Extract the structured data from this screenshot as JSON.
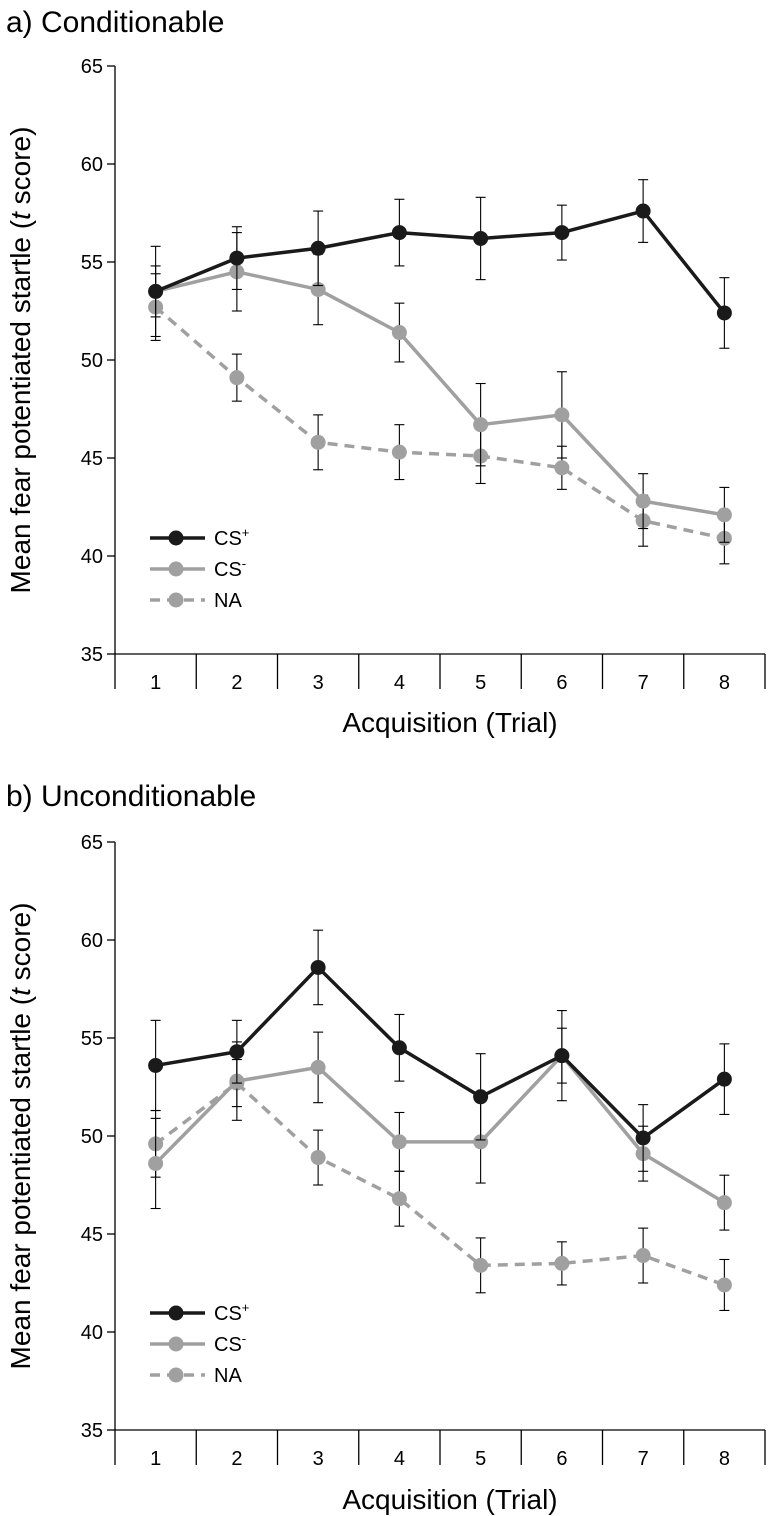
{
  "chart_data": [
    {
      "type": "line",
      "title": "a) Conditionable",
      "xlabel": "Acquisition (Trial)",
      "ylabel": "Mean fear potentiated startle (",
      "ylabel_italic": "t",
      "ylabel_end": " score)",
      "x": [
        1,
        2,
        3,
        4,
        5,
        6,
        7,
        8
      ],
      "ylim": [
        35,
        65
      ],
      "yticks": [
        35,
        40,
        45,
        50,
        55,
        60,
        65
      ],
      "grid": false,
      "legend_position": "bottom-left",
      "series": [
        {
          "name": "CS",
          "name_sup": "+",
          "color": "#1a1a1a",
          "dash": false,
          "values": [
            53.5,
            55.2,
            55.7,
            56.5,
            56.2,
            56.5,
            57.6,
            52.4
          ],
          "errors": [
            1.3,
            1.6,
            1.9,
            1.7,
            2.1,
            1.4,
            1.6,
            1.8
          ]
        },
        {
          "name": "CS",
          "name_sup": "-",
          "color": "#a0a0a0",
          "dash": false,
          "values": [
            53.5,
            54.5,
            53.6,
            51.4,
            46.7,
            47.2,
            42.8,
            42.1
          ],
          "errors": [
            2.3,
            2.0,
            1.8,
            1.5,
            2.1,
            2.2,
            1.4,
            1.4
          ]
        },
        {
          "name": "NA",
          "name_sup": "",
          "color": "#a0a0a0",
          "dash": true,
          "values": [
            52.7,
            49.1,
            45.8,
            45.3,
            45.1,
            44.5,
            41.8,
            40.9
          ],
          "errors": [
            1.7,
            1.2,
            1.4,
            1.4,
            1.4,
            1.1,
            1.3,
            1.3
          ]
        }
      ]
    },
    {
      "type": "line",
      "title": "b) Unconditionable",
      "xlabel": "Acquisition (Trial)",
      "ylabel": "Mean fear potentiated startle (",
      "ylabel_italic": "t",
      "ylabel_end": " score)",
      "x": [
        1,
        2,
        3,
        4,
        5,
        6,
        7,
        8
      ],
      "ylim": [
        35,
        65
      ],
      "yticks": [
        35,
        40,
        45,
        50,
        55,
        60,
        65
      ],
      "grid": false,
      "legend_position": "bottom-left",
      "series": [
        {
          "name": "CS",
          "name_sup": "+",
          "color": "#1a1a1a",
          "dash": false,
          "values": [
            53.6,
            54.3,
            58.6,
            54.5,
            52.0,
            54.1,
            49.9,
            52.9
          ],
          "errors": [
            2.3,
            1.6,
            1.9,
            1.7,
            2.2,
            1.4,
            1.7,
            1.8
          ]
        },
        {
          "name": "CS",
          "name_sup": "-",
          "color": "#a0a0a0",
          "dash": false,
          "values": [
            48.6,
            52.8,
            53.5,
            49.7,
            49.7,
            54.1,
            49.1,
            46.6
          ],
          "errors": [
            2.3,
            2.0,
            1.8,
            1.5,
            2.1,
            2.3,
            1.4,
            1.4
          ]
        },
        {
          "name": "NA",
          "name_sup": "",
          "color": "#a0a0a0",
          "dash": true,
          "values": [
            49.6,
            52.7,
            48.9,
            46.8,
            43.4,
            43.5,
            43.9,
            42.4
          ],
          "errors": [
            1.7,
            1.2,
            1.4,
            1.4,
            1.4,
            1.1,
            1.4,
            1.3
          ]
        }
      ]
    }
  ]
}
